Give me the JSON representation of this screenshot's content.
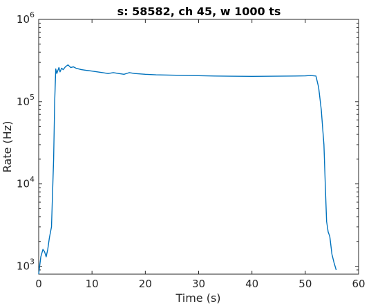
{
  "chart_data": {
    "type": "line",
    "title": "s: 58582, ch 45, w 1000 ts",
    "xlabel": "Time (s)",
    "ylabel": "Rate (Hz)",
    "xlim": [
      0,
      60
    ],
    "ylim": [
      800,
      1000000
    ],
    "yscale": "log",
    "grid": false,
    "box": true,
    "xticks": [
      0,
      10,
      20,
      30,
      40,
      50,
      60
    ],
    "xtick_labels": [
      "0",
      "10",
      "20",
      "30",
      "40",
      "50",
      "60"
    ],
    "yticks": [
      1000,
      10000,
      100000,
      1000000
    ],
    "ytick_labels": [
      {
        "base": "10",
        "exp": "3"
      },
      {
        "base": "10",
        "exp": "4"
      },
      {
        "base": "10",
        "exp": "5"
      },
      {
        "base": "10",
        "exp": "6"
      }
    ],
    "line_color": "#0072bd",
    "series": [
      {
        "x": [
          0,
          0.4,
          0.8,
          1.1,
          1.4,
          1.7,
          2.0,
          2.4,
          2.8,
          3.0,
          3.2,
          3.4,
          3.6,
          3.8,
          4.0,
          4.3,
          4.6,
          5.0,
          5.5,
          6.0,
          6.5,
          7.0,
          8.0,
          9.0,
          10.0,
          11.0,
          12.0,
          13.0,
          14.0,
          15.0,
          16.0,
          16.5,
          17.0,
          18.0,
          20.0,
          22.0,
          25.0,
          28.0,
          30.0,
          33.0,
          36.0,
          40.0,
          44.0,
          48.0,
          50.0,
          51.0,
          52.0,
          52.5,
          53.0,
          53.5,
          53.8,
          54.0,
          54.3,
          54.6,
          55.0,
          55.4,
          55.8
        ],
        "y": [
          800,
          1300,
          1600,
          1500,
          1300,
          1600,
          2200,
          3000,
          20000,
          100000,
          250000,
          220000,
          240000,
          260000,
          230000,
          255000,
          245000,
          265000,
          280000,
          260000,
          265000,
          255000,
          245000,
          240000,
          235000,
          230000,
          225000,
          220000,
          225000,
          220000,
          215000,
          220000,
          225000,
          220000,
          215000,
          212000,
          210000,
          208000,
          207000,
          205000,
          204000,
          203000,
          204000,
          205000,
          206000,
          208000,
          205000,
          150000,
          80000,
          30000,
          8000,
          3500,
          2600,
          2300,
          1400,
          1100,
          900
        ]
      }
    ]
  }
}
